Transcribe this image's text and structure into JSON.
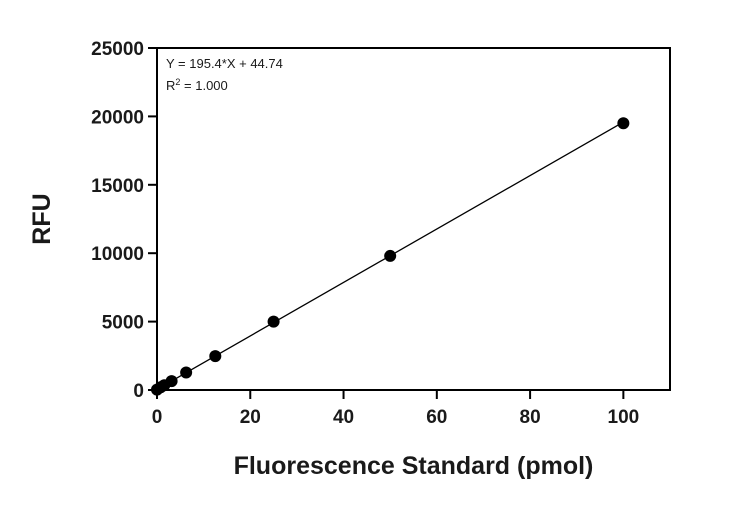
{
  "chart_data": {
    "type": "scatter",
    "xlabel": "Fluorescence Standard (pmol)",
    "ylabel": "RFU",
    "xlim": [
      0,
      110
    ],
    "ylim": [
      0,
      25000
    ],
    "x_ticks": [
      0,
      20,
      40,
      60,
      80,
      100
    ],
    "y_ticks": [
      0,
      5000,
      10000,
      15000,
      20000,
      25000
    ],
    "x_tick_labels": [
      "0",
      "20",
      "40",
      "60",
      "80",
      "100"
    ],
    "y_tick_labels": [
      "0",
      "5000",
      "10000",
      "15000",
      "20000",
      "25000"
    ],
    "grid": false,
    "series": [
      {
        "x": [
          0,
          0.78,
          1.56,
          3.13,
          6.25,
          12.5,
          25,
          50,
          100
        ],
        "y": [
          30,
          200,
          350,
          650,
          1280,
          2480,
          5000,
          9800,
          19500
        ]
      }
    ],
    "fit_line": {
      "slope": 195.4,
      "intercept": 44.74,
      "x_range": [
        0,
        100
      ]
    },
    "annotations": {
      "equation": "Y = 195.4*X + 44.74",
      "r2_prefix": "R",
      "r2_sup": "2",
      "r2_value": " = 1.000"
    },
    "colors": {
      "axis": "#000000",
      "marker": "#000000",
      "line": "#000000"
    }
  }
}
